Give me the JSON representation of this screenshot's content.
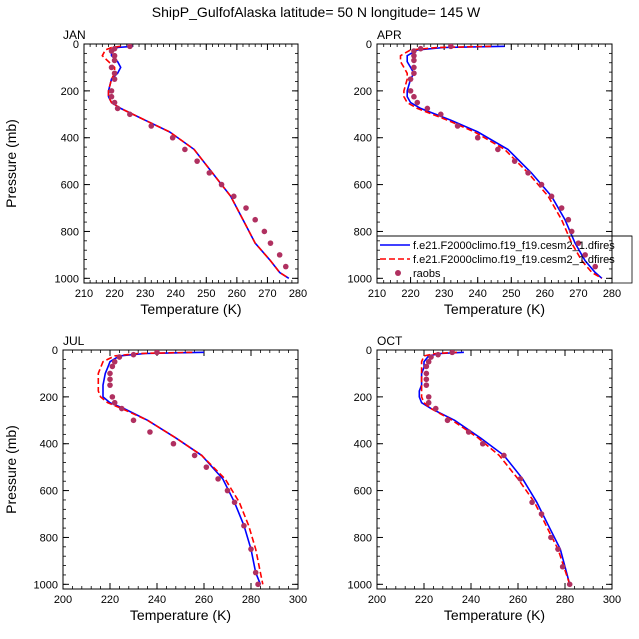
{
  "title": "ShipP_GulfofAlaska  latitude= 50 N longitude= 145 W",
  "legend": {
    "entries": [
      {
        "label": "f.e21.F2000climo.f19_f19.cesm2_1.dfires",
        "color": "#0000ff",
        "style": "solid"
      },
      {
        "label": "f.e21.F2000climo.f19_f19.cesm2_1.dfires",
        "color": "#ff0000",
        "style": "dashed"
      },
      {
        "label": "raobs",
        "color": "#b03060",
        "style": "marker"
      }
    ],
    "placement": "panel APR, lower-right"
  },
  "chart_data": [
    {
      "type": "line",
      "panel": "JAN",
      "xlabel": "Temperature (K)",
      "ylabel": "Pressure (mb)",
      "xlim": [
        210,
        280
      ],
      "ylim": [
        1020,
        0
      ],
      "y_inverted": true,
      "xticks": [
        210,
        220,
        230,
        240,
        250,
        260,
        270,
        280
      ],
      "yticks": [
        0,
        200,
        400,
        600,
        800,
        1000
      ],
      "series": [
        {
          "name": "f.e21.F2000climo.f19_f19.cesm2_1.dfires",
          "color": "#0000ff",
          "style": "solid",
          "x": [
            226,
            221,
            219,
            219,
            221,
            222,
            221,
            219,
            218,
            218,
            219,
            222,
            230,
            238,
            246,
            252,
            258,
            262,
            266,
            271,
            274,
            277
          ],
          "y": [
            10,
            15,
            25,
            50,
            75,
            100,
            125,
            150,
            200,
            225,
            250,
            275,
            325,
            375,
            450,
            550,
            650,
            750,
            850,
            925,
            975,
            1000
          ]
        },
        {
          "name": "f.e21.F2000climo.f19_f19.cesm2_1.dfires",
          "color": "#ff0000",
          "style": "dashed",
          "x": [
            222,
            219,
            217,
            216,
            218,
            220,
            220,
            219,
            218,
            218,
            219,
            222,
            230,
            238,
            246,
            252,
            258,
            262,
            266,
            271,
            274,
            277
          ],
          "y": [
            10,
            15,
            25,
            50,
            75,
            100,
            125,
            150,
            200,
            225,
            250,
            275,
            325,
            375,
            450,
            550,
            650,
            750,
            850,
            925,
            975,
            1000
          ]
        },
        {
          "name": "raobs",
          "color": "#b03060",
          "style": "marker",
          "x": [
            225,
            220,
            219,
            220,
            220,
            219,
            220,
            220,
            219,
            219,
            220,
            221,
            225,
            232,
            239,
            243,
            247,
            251,
            255,
            259,
            263,
            266,
            269,
            271,
            274,
            276
          ],
          "y": [
            10,
            20,
            30,
            50,
            70,
            100,
            125,
            150,
            200,
            225,
            250,
            275,
            300,
            350,
            400,
            450,
            500,
            550,
            600,
            650,
            700,
            750,
            800,
            850,
            900,
            950
          ]
        }
      ]
    },
    {
      "type": "line",
      "panel": "APR",
      "xlabel": "Temperature (K)",
      "ylabel": "",
      "xlim": [
        210,
        280
      ],
      "ylim": [
        1020,
        0
      ],
      "y_inverted": true,
      "xticks": [
        210,
        220,
        230,
        240,
        250,
        260,
        270,
        280
      ],
      "yticks": [
        0,
        200,
        400,
        600,
        800,
        1000
      ],
      "series": [
        {
          "name": "f.e21.F2000climo.f19_f19.cesm2_1.dfires",
          "color": "#0000ff",
          "style": "solid",
          "x": [
            248,
            230,
            222,
            219,
            219,
            220,
            221,
            220,
            219,
            219,
            220,
            223,
            232,
            240,
            249,
            256,
            262,
            266,
            269,
            272,
            275,
            277
          ],
          "y": [
            10,
            15,
            25,
            50,
            75,
            100,
            125,
            150,
            200,
            225,
            250,
            275,
            325,
            375,
            450,
            550,
            650,
            750,
            850,
            925,
            975,
            1000
          ]
        },
        {
          "name": "f.e21.F2000climo.f19_f19.cesm2_1.dfires",
          "color": "#ff0000",
          "style": "dashed",
          "x": [
            244,
            228,
            220,
            217,
            217,
            218,
            219,
            219,
            218,
            218,
            219,
            222,
            231,
            239,
            248,
            255,
            261,
            265,
            268,
            271,
            274,
            277
          ],
          "y": [
            10,
            15,
            25,
            50,
            75,
            100,
            125,
            150,
            200,
            225,
            250,
            275,
            325,
            375,
            450,
            550,
            650,
            750,
            850,
            925,
            975,
            1000
          ]
        },
        {
          "name": "raobs",
          "color": "#b03060",
          "style": "marker",
          "x": [
            232,
            223,
            221,
            221,
            221,
            221,
            221,
            220,
            220,
            221,
            222,
            225,
            229,
            234,
            240,
            246,
            251,
            255,
            259,
            262,
            265,
            267,
            268,
            270,
            272,
            275
          ],
          "y": [
            10,
            20,
            30,
            50,
            70,
            100,
            125,
            150,
            200,
            225,
            250,
            275,
            300,
            350,
            400,
            450,
            500,
            550,
            600,
            650,
            700,
            750,
            800,
            850,
            900,
            950
          ]
        }
      ]
    },
    {
      "type": "line",
      "panel": "JUL",
      "xlabel": "Temperature (K)",
      "ylabel": "Pressure (mb)",
      "xlim": [
        200,
        300
      ],
      "ylim": [
        1020,
        0
      ],
      "y_inverted": true,
      "xticks": [
        200,
        220,
        240,
        260,
        280,
        300
      ],
      "yticks": [
        0,
        200,
        400,
        600,
        800,
        1000
      ],
      "series": [
        {
          "name": "f.e21.F2000climo.f19_f19.cesm2_1.dfires",
          "color": "#0000ff",
          "style": "solid",
          "x": [
            260,
            235,
            224,
            220,
            219,
            218,
            217,
            217,
            217,
            220,
            226,
            236,
            248,
            259,
            268,
            273,
            277,
            280,
            282,
            284
          ],
          "y": [
            10,
            15,
            25,
            50,
            75,
            100,
            150,
            175,
            200,
            225,
            250,
            300,
            375,
            450,
            550,
            650,
            750,
            850,
            950,
            1000
          ]
        },
        {
          "name": "f.e21.F2000climo.f19_f19.cesm2_1.dfires",
          "color": "#ff0000",
          "style": "dashed",
          "x": [
            255,
            232,
            222,
            217,
            216,
            215,
            215,
            215,
            216,
            219,
            225,
            236,
            248,
            259,
            269,
            275,
            279,
            282,
            284,
            285
          ],
          "y": [
            10,
            15,
            25,
            50,
            75,
            100,
            150,
            175,
            200,
            225,
            250,
            300,
            375,
            450,
            550,
            650,
            750,
            850,
            950,
            1000
          ]
        },
        {
          "name": "raobs",
          "color": "#b03060",
          "style": "marker",
          "x": [
            240,
            230,
            224,
            222,
            221,
            220,
            220,
            220,
            221,
            222,
            225,
            230,
            237,
            247,
            256,
            261,
            266,
            270,
            273,
            277,
            280,
            282,
            283
          ],
          "y": [
            10,
            20,
            30,
            50,
            70,
            100,
            125,
            150,
            200,
            225,
            250,
            300,
            350,
            400,
            450,
            500,
            550,
            600,
            650,
            750,
            850,
            950,
            1000
          ]
        }
      ]
    },
    {
      "type": "line",
      "panel": "OCT",
      "xlabel": "Temperature (K)",
      "ylabel": "",
      "xlim": [
        200,
        300
      ],
      "ylim": [
        1020,
        0
      ],
      "y_inverted": true,
      "xticks": [
        200,
        220,
        240,
        260,
        280,
        300
      ],
      "yticks": [
        0,
        200,
        400,
        600,
        800,
        1000
      ],
      "series": [
        {
          "name": "f.e21.F2000climo.f19_f19.cesm2_1.dfires",
          "color": "#0000ff",
          "style": "solid",
          "x": [
            237,
            227,
            222,
            220,
            220,
            219,
            219,
            218,
            218,
            219,
            223,
            233,
            244,
            254,
            262,
            268,
            273,
            278,
            282
          ],
          "y": [
            10,
            15,
            25,
            50,
            75,
            100,
            150,
            175,
            200,
            225,
            250,
            300,
            375,
            450,
            550,
            650,
            750,
            850,
            1000
          ]
        },
        {
          "name": "f.e21.F2000climo.f19_f19.cesm2_1.dfires",
          "color": "#ff0000",
          "style": "dashed",
          "x": [
            234,
            225,
            220,
            219,
            219,
            219,
            219,
            219,
            219,
            220,
            223,
            232,
            243,
            252,
            260,
            267,
            272,
            277,
            282
          ],
          "y": [
            10,
            15,
            25,
            50,
            75,
            100,
            150,
            175,
            200,
            225,
            250,
            300,
            375,
            450,
            550,
            650,
            750,
            850,
            1000
          ]
        },
        {
          "name": "raobs",
          "color": "#b03060",
          "style": "marker",
          "x": [
            232,
            226,
            223,
            222,
            221,
            221,
            221,
            221,
            222,
            222,
            225,
            230,
            239,
            245,
            254,
            261,
            266,
            270,
            274,
            277,
            279,
            282
          ],
          "y": [
            10,
            20,
            30,
            50,
            70,
            100,
            125,
            150,
            200,
            225,
            250,
            300,
            350,
            400,
            450,
            550,
            650,
            700,
            800,
            850,
            925,
            1000
          ]
        }
      ]
    }
  ]
}
